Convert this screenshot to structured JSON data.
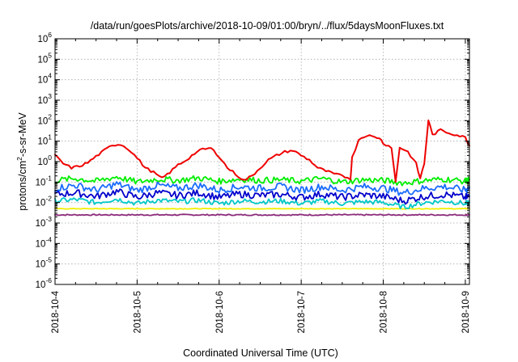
{
  "chart_data": {
    "type": "line",
    "title": "/data/run/goesPlots/archive/2018-10-09/01:00/bryn/../flux/5daysMoonFluxes.txt",
    "xlabel": "Coordinated Universal Time (UTC)",
    "ylabel": {
      "prefix": "protons/cm",
      "sup": "2",
      "suffix": "-s-sr-MeV"
    },
    "yscale": "log",
    "ylim": [
      1e-06,
      1000000.0
    ],
    "xlim": [
      0,
      5.05
    ],
    "x_unit": "days since 2018-10-04",
    "x_ticks": [
      {
        "label": "2018-10-4",
        "day": 0
      },
      {
        "label": "2018-10-5",
        "day": 1
      },
      {
        "label": "2018-10-6",
        "day": 2
      },
      {
        "label": "2018-10-7",
        "day": 3
      },
      {
        "label": "2018-10-8",
        "day": 4
      },
      {
        "label": "2018-10-9",
        "day": 5
      }
    ],
    "y_ticks": [
      {
        "base": "10",
        "exp": "6"
      },
      {
        "base": "10",
        "exp": "5"
      },
      {
        "base": "10",
        "exp": "4"
      },
      {
        "base": "10",
        "exp": "3"
      },
      {
        "base": "10",
        "exp": "2"
      },
      {
        "base": "10",
        "exp": "1"
      },
      {
        "base": "10",
        "exp": "0"
      },
      {
        "base": "10",
        "exp": "-1"
      },
      {
        "base": "10",
        "exp": "-2"
      },
      {
        "base": "10",
        "exp": "-3"
      },
      {
        "base": "10",
        "exp": "-4"
      },
      {
        "base": "10",
        "exp": "-5"
      },
      {
        "base": "10",
        "exp": "-6"
      }
    ],
    "grid": true,
    "series": [
      {
        "color": "#ee0000",
        "x": [
          0,
          0.1,
          0.2,
          0.3,
          0.4,
          0.5,
          0.6,
          0.7,
          0.8,
          0.9,
          1.0,
          1.1,
          1.2,
          1.3,
          1.4,
          1.5,
          1.6,
          1.7,
          1.8,
          1.9,
          2.0,
          2.1,
          2.2,
          2.3,
          2.4,
          2.5,
          2.6,
          2.7,
          2.8,
          2.9,
          3.0,
          3.1,
          3.2,
          3.3,
          3.4,
          3.5,
          3.6,
          3.62,
          3.7,
          3.8,
          3.9,
          3.95,
          4.0,
          4.1,
          4.15,
          4.2,
          4.3,
          4.4,
          4.45,
          4.5,
          4.55,
          4.6,
          4.7,
          4.8,
          4.9,
          5.0,
          5.05
        ],
        "y": [
          2.0,
          0.8,
          0.5,
          0.6,
          0.9,
          1.8,
          3.5,
          6.5,
          7.0,
          4.0,
          1.5,
          0.5,
          0.3,
          0.15,
          0.3,
          0.7,
          1.2,
          2.5,
          4.0,
          4.5,
          1.8,
          0.5,
          0.25,
          0.12,
          0.2,
          0.5,
          1.2,
          2.0,
          3.0,
          3.5,
          2.0,
          1.2,
          0.5,
          0.35,
          0.25,
          0.2,
          0.15,
          1.5,
          12,
          20,
          15,
          15,
          8,
          5,
          0.1,
          5,
          3,
          0.8,
          0.15,
          0.8,
          110,
          20,
          35,
          25,
          20,
          15,
          6
        ]
      },
      {
        "color": "#00ee00",
        "x": [
          0,
          0.25,
          0.5,
          0.75,
          1.0,
          1.25,
          1.5,
          1.75,
          2.0,
          2.25,
          2.5,
          2.75,
          3.0,
          3.25,
          3.5,
          3.75,
          4.0,
          4.25,
          4.5,
          4.75,
          5.0,
          5.05
        ],
        "y": [
          0.12,
          0.15,
          0.11,
          0.18,
          0.1,
          0.14,
          0.12,
          0.16,
          0.11,
          0.14,
          0.12,
          0.13,
          0.11,
          0.15,
          0.1,
          0.13,
          0.12,
          0.09,
          0.12,
          0.14,
          0.11,
          0.13
        ],
        "jitter": 0.3
      },
      {
        "color": "#1a6cff",
        "x": [
          0,
          0.25,
          0.5,
          0.75,
          1.0,
          1.25,
          1.5,
          1.75,
          2.0,
          2.25,
          2.5,
          2.75,
          3.0,
          3.25,
          3.5,
          3.75,
          4.0,
          4.25,
          4.5,
          4.75,
          5.0,
          5.05
        ],
        "y": [
          0.05,
          0.07,
          0.04,
          0.08,
          0.04,
          0.07,
          0.05,
          0.07,
          0.04,
          0.06,
          0.05,
          0.06,
          0.04,
          0.06,
          0.04,
          0.06,
          0.05,
          0.03,
          0.05,
          0.06,
          0.04,
          0.05
        ],
        "jitter": 0.35
      },
      {
        "color": "#0000cc",
        "x": [
          0,
          0.25,
          0.5,
          0.75,
          1.0,
          1.25,
          1.5,
          1.75,
          2.0,
          2.25,
          2.5,
          2.75,
          3.0,
          3.25,
          3.5,
          3.75,
          4.0,
          4.25,
          4.5,
          4.75,
          5.0,
          5.05
        ],
        "y": [
          0.025,
          0.03,
          0.02,
          0.035,
          0.018,
          0.03,
          0.022,
          0.03,
          0.018,
          0.026,
          0.022,
          0.025,
          0.018,
          0.026,
          0.018,
          0.024,
          0.02,
          0.012,
          0.02,
          0.025,
          0.018,
          0.02
        ],
        "jitter": 0.35
      },
      {
        "color": "#00c8c8",
        "x": [
          0,
          0.25,
          0.5,
          0.75,
          1.0,
          1.25,
          1.5,
          1.75,
          2.0,
          2.25,
          2.5,
          2.75,
          3.0,
          3.25,
          3.5,
          3.75,
          4.0,
          4.25,
          4.5,
          4.75,
          5.0,
          5.05
        ],
        "y": [
          0.012,
          0.014,
          0.01,
          0.015,
          0.009,
          0.013,
          0.011,
          0.013,
          0.009,
          0.012,
          0.011,
          0.012,
          0.009,
          0.012,
          0.009,
          0.011,
          0.01,
          0.006,
          0.01,
          0.012,
          0.009,
          0.01
        ],
        "jitter": 0.25
      },
      {
        "color": "#f0f000",
        "x": [
          0,
          0.25,
          0.5,
          0.75,
          1.0,
          1.25,
          1.5,
          1.75,
          2.0,
          2.25,
          2.5,
          2.75,
          3.0,
          3.25,
          3.5,
          3.75,
          4.0,
          4.25,
          4.5,
          4.75,
          5.0,
          5.05
        ],
        "y": [
          0.005,
          0.005,
          0.005,
          0.005,
          0.005,
          0.005,
          0.005,
          0.005,
          0.005,
          0.005,
          0.005,
          0.005,
          0.005,
          0.005,
          0.005,
          0.005,
          0.005,
          0.005,
          0.005,
          0.005,
          0.005,
          0.005
        ],
        "jitter": 0.03
      },
      {
        "color": "#8b2a7a",
        "x": [
          0,
          0.25,
          0.5,
          0.75,
          1.0,
          1.25,
          1.5,
          1.75,
          2.0,
          2.25,
          2.5,
          2.75,
          3.0,
          3.25,
          3.5,
          3.75,
          4.0,
          4.25,
          4.5,
          4.75,
          5.0,
          5.05
        ],
        "y": [
          0.0025,
          0.0025,
          0.0025,
          0.0025,
          0.0025,
          0.0025,
          0.0025,
          0.0025,
          0.0025,
          0.0025,
          0.0025,
          0.0025,
          0.0025,
          0.0025,
          0.0025,
          0.0025,
          0.0025,
          0.0025,
          0.0025,
          0.0025,
          0.0025,
          0.0025
        ],
        "jitter": 0.06
      }
    ]
  }
}
